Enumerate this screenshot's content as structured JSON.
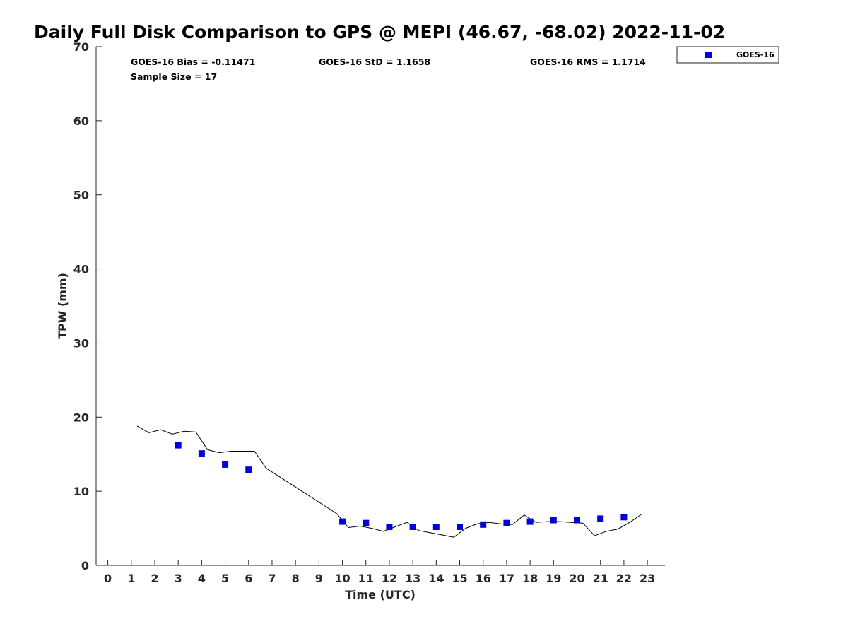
{
  "chart_data": {
    "type": "scatter",
    "title": "Daily Full Disk Comparison to GPS @ MEPI (46.67, -68.02) 2022-11-02",
    "xlabel": "Time (UTC)",
    "ylabel": "TPW (mm)",
    "xlim": [
      -0.5,
      23.75
    ],
    "ylim": [
      0,
      70
    ],
    "xticks": [
      "0",
      "1",
      "2",
      "3",
      "4",
      "5",
      "6",
      "7",
      "8",
      "9",
      "10",
      "11",
      "12",
      "13",
      "14",
      "15",
      "16",
      "17",
      "18",
      "19",
      "20",
      "21",
      "22",
      "23"
    ],
    "yticks": [
      "0",
      "10",
      "20",
      "30",
      "40",
      "50",
      "60",
      "70"
    ],
    "grid": false,
    "legend_position": "top-right",
    "stats": {
      "bias": "GOES-16 Bias = -0.11471",
      "std": "GOES-16 StD = 1.1658",
      "rms": "GOES-16 RMS = 1.1714",
      "sample": "Sample Size = 17"
    },
    "series": [
      {
        "name": "GOES-16",
        "kind": "scatter",
        "marker": "square",
        "color": "#0000dd",
        "x": [
          3,
          4,
          5,
          6,
          10,
          11,
          12,
          13,
          14,
          15,
          16,
          17,
          18,
          19,
          20,
          21,
          22
        ],
        "y": [
          16.2,
          15.1,
          13.6,
          12.9,
          5.9,
          5.7,
          5.2,
          5.2,
          5.2,
          5.2,
          5.5,
          5.7,
          5.9,
          6.1,
          6.1,
          6.3,
          6.5
        ]
      },
      {
        "kind": "line",
        "color": "#000000",
        "x": [
          1.25,
          1.75,
          2.25,
          2.75,
          3.25,
          3.75,
          4.25,
          4.75,
          5.25,
          5.75,
          6.25,
          6.75,
          9.75,
          10.25,
          10.75,
          11.25,
          11.75,
          12.25,
          12.75,
          13.25,
          13.75,
          14.25,
          14.75,
          15.25,
          15.75,
          16.25,
          16.75,
          17.25,
          17.75,
          18.25,
          18.75,
          19.25,
          19.75,
          20.25,
          20.75,
          21.25,
          21.75,
          22.25,
          22.75
        ],
        "y": [
          18.8,
          17.9,
          18.3,
          17.7,
          18.1,
          18.0,
          15.6,
          15.2,
          15.4,
          15.4,
          15.4,
          13.1,
          7.0,
          5.1,
          5.3,
          5.0,
          4.6,
          5.2,
          5.8,
          4.7,
          4.4,
          4.1,
          3.8,
          5.0,
          5.6,
          5.8,
          5.6,
          5.5,
          6.8,
          5.8,
          5.9,
          5.9,
          5.8,
          5.7,
          4.0,
          4.6,
          4.9,
          5.8,
          6.9
        ]
      }
    ]
  }
}
